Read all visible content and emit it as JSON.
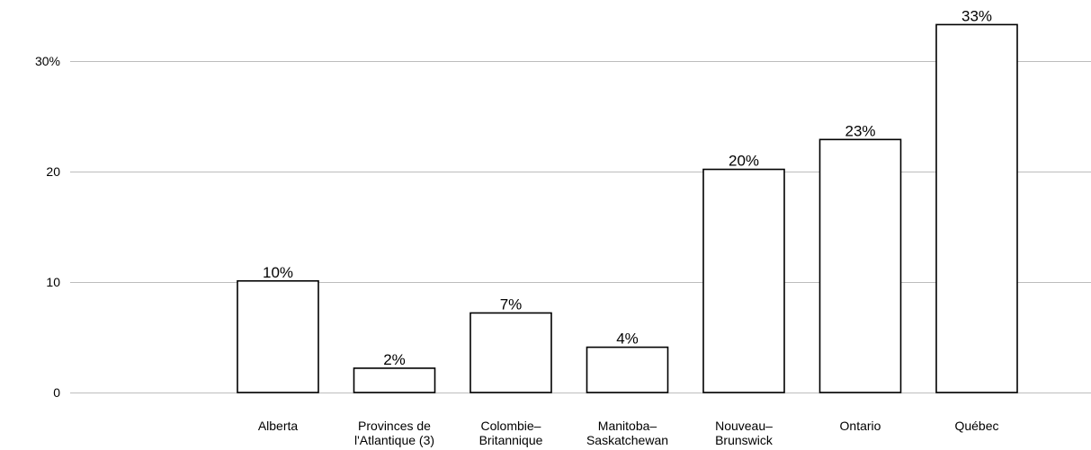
{
  "chart_data": {
    "type": "bar",
    "categories": [
      "Alberta",
      "Provinces de l'Atlantique (3)",
      "Colombie–Britannique",
      "Manitoba–Saskatchewan",
      "Nouveau–Brunswick",
      "Ontario",
      "Québec"
    ],
    "values": [
      10.1,
      2.2,
      7.2,
      4.1,
      20.2,
      22.9,
      33.3
    ],
    "data_labels": [
      "10%",
      "2%",
      "7%",
      "4%",
      "20%",
      "23%",
      "33%"
    ],
    "ylim": [
      0,
      35
    ],
    "yticks": [
      0,
      10,
      20,
      30
    ],
    "ytick_labels": [
      "0",
      "10",
      "20",
      "30%"
    ],
    "grid": true
  },
  "colors": {
    "background": "#ffffff",
    "bar_fill": "#ffffff",
    "bar_stroke": "#000000",
    "grid": "#bdbdbd",
    "text": "#000000"
  }
}
